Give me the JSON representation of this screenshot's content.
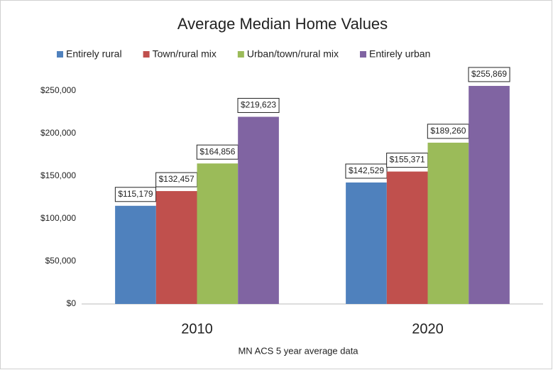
{
  "chart_data": {
    "type": "bar",
    "title": "Average Median Home Values",
    "x_label": "MN ACS 5 year average data",
    "categories": [
      "2010",
      "2020"
    ],
    "series": [
      {
        "name": "Entirely rural",
        "color": "#4f81bd",
        "values": [
          115179,
          142529
        ],
        "value_labels": [
          "$115,179",
          "$142,529"
        ]
      },
      {
        "name": "Town/rural mix",
        "color": "#c0504d",
        "values": [
          132457,
          155371
        ],
        "value_labels": [
          "$132,457",
          "$155,371"
        ]
      },
      {
        "name": "Urban/town/rural mix",
        "color": "#9bbb59",
        "values": [
          164856,
          189260
        ],
        "value_labels": [
          "$164,856",
          "$189,260"
        ]
      },
      {
        "name": "Entirely urban",
        "color": "#8064a2",
        "values": [
          219623,
          255869
        ],
        "value_labels": [
          "$219,623",
          "$255,869"
        ]
      }
    ],
    "ylim": [
      0,
      265000
    ],
    "yticks": [
      {
        "value": 0,
        "label": "$0"
      },
      {
        "value": 50000,
        "label": "$50,000"
      },
      {
        "value": 100000,
        "label": "$100,000"
      },
      {
        "value": 150000,
        "label": "$150,000"
      },
      {
        "value": 200000,
        "label": "$200,000"
      },
      {
        "value": 250000,
        "label": "$250,000"
      }
    ],
    "grid": false,
    "legend": "top"
  }
}
